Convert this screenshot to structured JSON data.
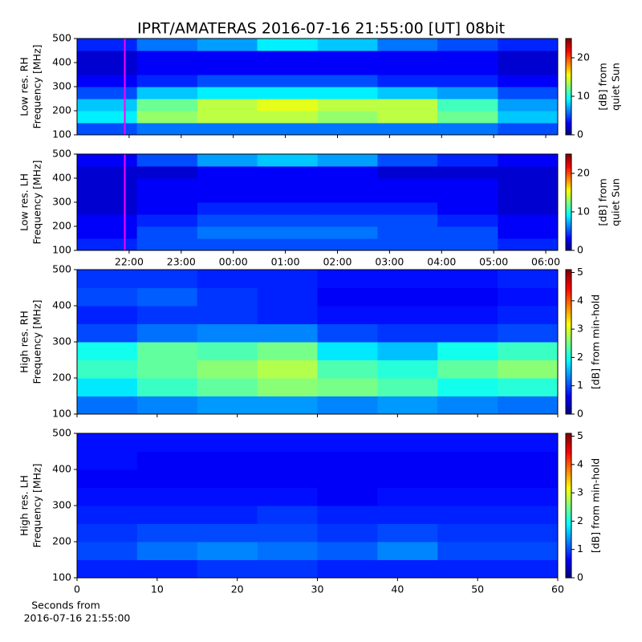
{
  "title": "IPRT/AMATERAS 2016-07-16 21:55:00 [UT]   08bit",
  "chart_data": [
    {
      "type": "heatmap",
      "ylabel": [
        "Low res. RH",
        "Frequency [MHz]"
      ],
      "clabel": [
        "[dB] from",
        "quiet Sun"
      ],
      "xlim": [
        21.0,
        30.23
      ],
      "xticks": [
        22,
        23,
        24,
        25,
        26,
        27,
        28,
        29,
        30
      ],
      "ylim": [
        100,
        500
      ],
      "yticks": [
        100,
        200,
        300,
        400,
        500
      ],
      "clim": [
        0,
        25
      ],
      "cticks": [
        0,
        10,
        20
      ],
      "marker_x": 21.917,
      "marker_color": "#ff00ff",
      "xbins": [
        21.0,
        22.15,
        23.31,
        24.46,
        25.62,
        26.77,
        27.92,
        29.08,
        30.23
      ],
      "ybins": [
        100,
        150,
        200,
        250,
        300,
        350,
        400,
        450,
        500
      ],
      "z": [
        [
          5,
          6,
          6,
          6,
          6,
          6,
          6,
          5
        ],
        [
          9,
          13,
          14,
          14,
          13,
          14,
          12,
          8
        ],
        [
          8,
          12,
          14,
          15,
          14,
          14,
          11,
          7
        ],
        [
          5,
          8,
          9,
          9,
          9,
          8,
          7,
          5
        ],
        [
          3,
          4,
          5,
          5,
          5,
          4,
          4,
          3
        ],
        [
          2,
          3,
          3,
          3,
          3,
          3,
          3,
          2
        ],
        [
          2,
          3,
          3,
          3,
          3,
          3,
          3,
          2
        ],
        [
          4,
          6,
          7,
          9,
          8,
          6,
          5,
          4
        ]
      ]
    },
    {
      "type": "heatmap",
      "ylabel": [
        "Low res. LH",
        "Frequency [MHz]"
      ],
      "clabel": [
        "[dB] from",
        "quiet Sun"
      ],
      "xlim": [
        21.0,
        30.23
      ],
      "xticks": [
        {
          "value": 22,
          "label": "22:00"
        },
        {
          "value": 23,
          "label": "23:00"
        },
        {
          "value": 24,
          "label": "00:00"
        },
        {
          "value": 25,
          "label": "01:00"
        },
        {
          "value": 26,
          "label": "02:00"
        },
        {
          "value": 27,
          "label": "03:00"
        },
        {
          "value": 28,
          "label": "04:00"
        },
        {
          "value": 29,
          "label": "05:00"
        },
        {
          "value": 30,
          "label": "06:00"
        }
      ],
      "ylim": [
        100,
        500
      ],
      "yticks": [
        100,
        200,
        300,
        400,
        500
      ],
      "clim": [
        0,
        25
      ],
      "cticks": [
        0,
        10,
        20
      ],
      "marker_x": 21.917,
      "marker_color": "#ff00ff",
      "xbins": [
        21.0,
        22.15,
        23.31,
        24.46,
        25.62,
        26.77,
        27.92,
        29.08,
        30.23
      ],
      "ybins": [
        100,
        150,
        200,
        250,
        300,
        350,
        400,
        450,
        500
      ],
      "z": [
        [
          4,
          5,
          5,
          5,
          5,
          5,
          5,
          4
        ],
        [
          3,
          5,
          6,
          6,
          6,
          5,
          5,
          3
        ],
        [
          3,
          4,
          5,
          5,
          5,
          5,
          4,
          3
        ],
        [
          2,
          3,
          4,
          4,
          4,
          4,
          3,
          2
        ],
        [
          2,
          3,
          3,
          3,
          3,
          3,
          3,
          2
        ],
        [
          2,
          3,
          3,
          3,
          3,
          3,
          3,
          2
        ],
        [
          2,
          2,
          3,
          3,
          3,
          2,
          2,
          2
        ],
        [
          3,
          5,
          7,
          8,
          7,
          5,
          4,
          3
        ]
      ]
    },
    {
      "type": "heatmap",
      "ylabel": [
        "High res. RH",
        "Frequency [MHz]"
      ],
      "clabel": [
        "[dB] from min-hold"
      ],
      "xlim": [
        0,
        60
      ],
      "xticks": [
        0,
        10,
        20,
        30,
        40,
        50,
        60
      ],
      "ylim": [
        100,
        500
      ],
      "yticks": [
        100,
        200,
        300,
        400,
        500
      ],
      "clim": [
        0,
        5.1
      ],
      "cticks": [
        0,
        1,
        2,
        3,
        4,
        5
      ],
      "xbins": [
        0,
        7.5,
        15,
        22.5,
        30,
        37.5,
        45,
        52.5,
        60
      ],
      "ybins": [
        100,
        150,
        200,
        250,
        300,
        350,
        400,
        450,
        500
      ],
      "z": [
        [
          1.2,
          1.3,
          1.4,
          1.4,
          1.3,
          1.4,
          1.3,
          1.2
        ],
        [
          1.8,
          2.2,
          2.4,
          2.6,
          2.5,
          2.3,
          2.0,
          2.1
        ],
        [
          2.2,
          2.4,
          2.6,
          2.8,
          2.3,
          2.1,
          2.4,
          2.6
        ],
        [
          2.0,
          2.4,
          2.3,
          2.5,
          1.8,
          1.6,
          2.0,
          2.2
        ],
        [
          1.0,
          1.2,
          1.3,
          1.3,
          1.0,
          0.9,
          0.9,
          1.0
        ],
        [
          0.8,
          0.9,
          0.9,
          0.8,
          0.7,
          0.7,
          0.7,
          0.8
        ],
        [
          1.0,
          1.1,
          0.9,
          0.8,
          0.6,
          0.6,
          0.6,
          0.7
        ],
        [
          0.9,
          0.9,
          0.8,
          0.8,
          0.7,
          0.7,
          0.7,
          0.8
        ]
      ]
    },
    {
      "type": "heatmap",
      "ylabel": [
        "High res. LH",
        "Frequency [MHz]"
      ],
      "clabel": [
        "[dB] from min-hold"
      ],
      "xlabel": [
        "Seconds from",
        "2016-07-16 21:55:00"
      ],
      "xlim": [
        0,
        60
      ],
      "xticks": [
        0,
        10,
        20,
        30,
        40,
        50,
        60
      ],
      "ylim": [
        100,
        500
      ],
      "yticks": [
        100,
        200,
        300,
        400,
        500
      ],
      "clim": [
        0,
        5.1
      ],
      "cticks": [
        0,
        1,
        2,
        3,
        4,
        5
      ],
      "xbins": [
        0,
        7.5,
        15,
        22.5,
        30,
        37.5,
        45,
        52.5,
        60
      ],
      "ybins": [
        100,
        150,
        200,
        250,
        300,
        350,
        400,
        450,
        500
      ],
      "z": [
        [
          0.8,
          0.8,
          0.9,
          0.9,
          0.8,
          0.8,
          0.8,
          0.8
        ],
        [
          1.0,
          1.2,
          1.3,
          1.2,
          1.1,
          1.3,
          1.0,
          1.0
        ],
        [
          0.9,
          1.0,
          1.0,
          1.0,
          0.9,
          1.0,
          0.9,
          0.9
        ],
        [
          0.8,
          0.8,
          0.8,
          0.9,
          0.8,
          0.8,
          0.8,
          0.8
        ],
        [
          0.7,
          0.7,
          0.7,
          0.7,
          0.6,
          0.7,
          0.7,
          0.7
        ],
        [
          0.6,
          0.6,
          0.6,
          0.6,
          0.6,
          0.6,
          0.6,
          0.6
        ],
        [
          0.7,
          0.6,
          0.6,
          0.6,
          0.6,
          0.6,
          0.6,
          0.6
        ],
        [
          0.7,
          0.7,
          0.7,
          0.7,
          0.7,
          0.7,
          0.7,
          0.7
        ]
      ]
    }
  ]
}
